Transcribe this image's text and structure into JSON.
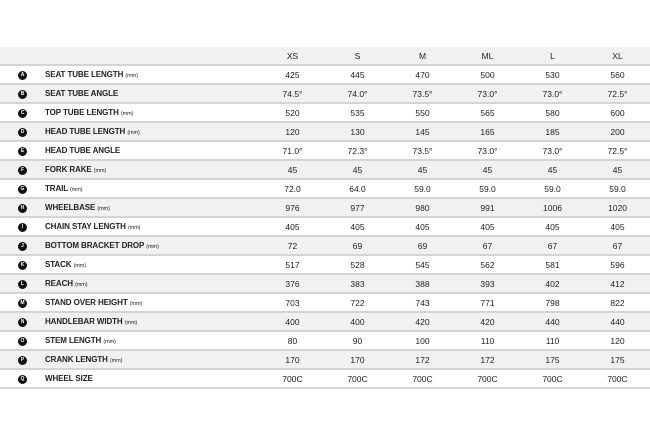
{
  "columns": [
    "XS",
    "S",
    "M",
    "ML",
    "L",
    "XL"
  ],
  "rows": [
    {
      "letter": "A",
      "label": "SEAT TUBE LENGTH",
      "unit": "(mm)",
      "values": [
        "425",
        "445",
        "470",
        "500",
        "530",
        "560"
      ]
    },
    {
      "letter": "B",
      "label": "SEAT TUBE ANGLE",
      "unit": "",
      "values": [
        "74.5°",
        "74.0°",
        "73.5°",
        "73.0°",
        "73.0°",
        "72.5°"
      ]
    },
    {
      "letter": "C",
      "label": "TOP TUBE LENGTH",
      "unit": "(mm)",
      "values": [
        "520",
        "535",
        "550",
        "565",
        "580",
        "600"
      ]
    },
    {
      "letter": "D",
      "label": "HEAD TUBE LENGTH",
      "unit": "(mm)",
      "values": [
        "120",
        "130",
        "145",
        "165",
        "185",
        "200"
      ]
    },
    {
      "letter": "E",
      "label": "HEAD TUBE ANGLE",
      "unit": "",
      "values": [
        "71.0°",
        "72.3°",
        "73.5°",
        "73.0°",
        "73.0°",
        "72.5°"
      ]
    },
    {
      "letter": "F",
      "label": "FORK RAKE",
      "unit": "(mm)",
      "values": [
        "45",
        "45",
        "45",
        "45",
        "45",
        "45"
      ]
    },
    {
      "letter": "G",
      "label": "TRAIL",
      "unit": "(mm)",
      "values": [
        "72.0",
        "64.0",
        "59.0",
        "59.0",
        "59.0",
        "59.0"
      ]
    },
    {
      "letter": "H",
      "label": "WHEELBASE",
      "unit": "(mm)",
      "values": [
        "976",
        "977",
        "980",
        "991",
        "1006",
        "1020"
      ]
    },
    {
      "letter": "I",
      "label": "CHAIN STAY LENGTH",
      "unit": "(mm)",
      "values": [
        "405",
        "405",
        "405",
        "405",
        "405",
        "405"
      ]
    },
    {
      "letter": "J",
      "label": "BOTTOM BRACKET DROP",
      "unit": "(mm)",
      "values": [
        "72",
        "69",
        "69",
        "67",
        "67",
        "67"
      ]
    },
    {
      "letter": "K",
      "label": "STACK",
      "unit": "(mm)",
      "values": [
        "517",
        "528",
        "545",
        "562",
        "581",
        "596"
      ]
    },
    {
      "letter": "L",
      "label": "REACH",
      "unit": "(mm)",
      "values": [
        "376",
        "383",
        "388",
        "393",
        "402",
        "412"
      ]
    },
    {
      "letter": "M",
      "label": "STAND OVER HEIGHT",
      "unit": "(mm)",
      "values": [
        "703",
        "722",
        "743",
        "771",
        "798",
        "822"
      ]
    },
    {
      "letter": "N",
      "label": "HANDLEBAR WIDTH",
      "unit": "(mm)",
      "values": [
        "400",
        "400",
        "420",
        "420",
        "440",
        "440"
      ]
    },
    {
      "letter": "O",
      "label": "STEM LENGTH",
      "unit": "(mm)",
      "values": [
        "80",
        "90",
        "100",
        "110",
        "110",
        "120"
      ]
    },
    {
      "letter": "P",
      "label": "CRANK LENGTH",
      "unit": "(mm)",
      "values": [
        "170",
        "170",
        "172",
        "172",
        "175",
        "175"
      ]
    },
    {
      "letter": "Q",
      "label": "WHEEL SIZE",
      "unit": "",
      "values": [
        "700C",
        "700C",
        "700C",
        "700C",
        "700C",
        "700C"
      ]
    }
  ]
}
